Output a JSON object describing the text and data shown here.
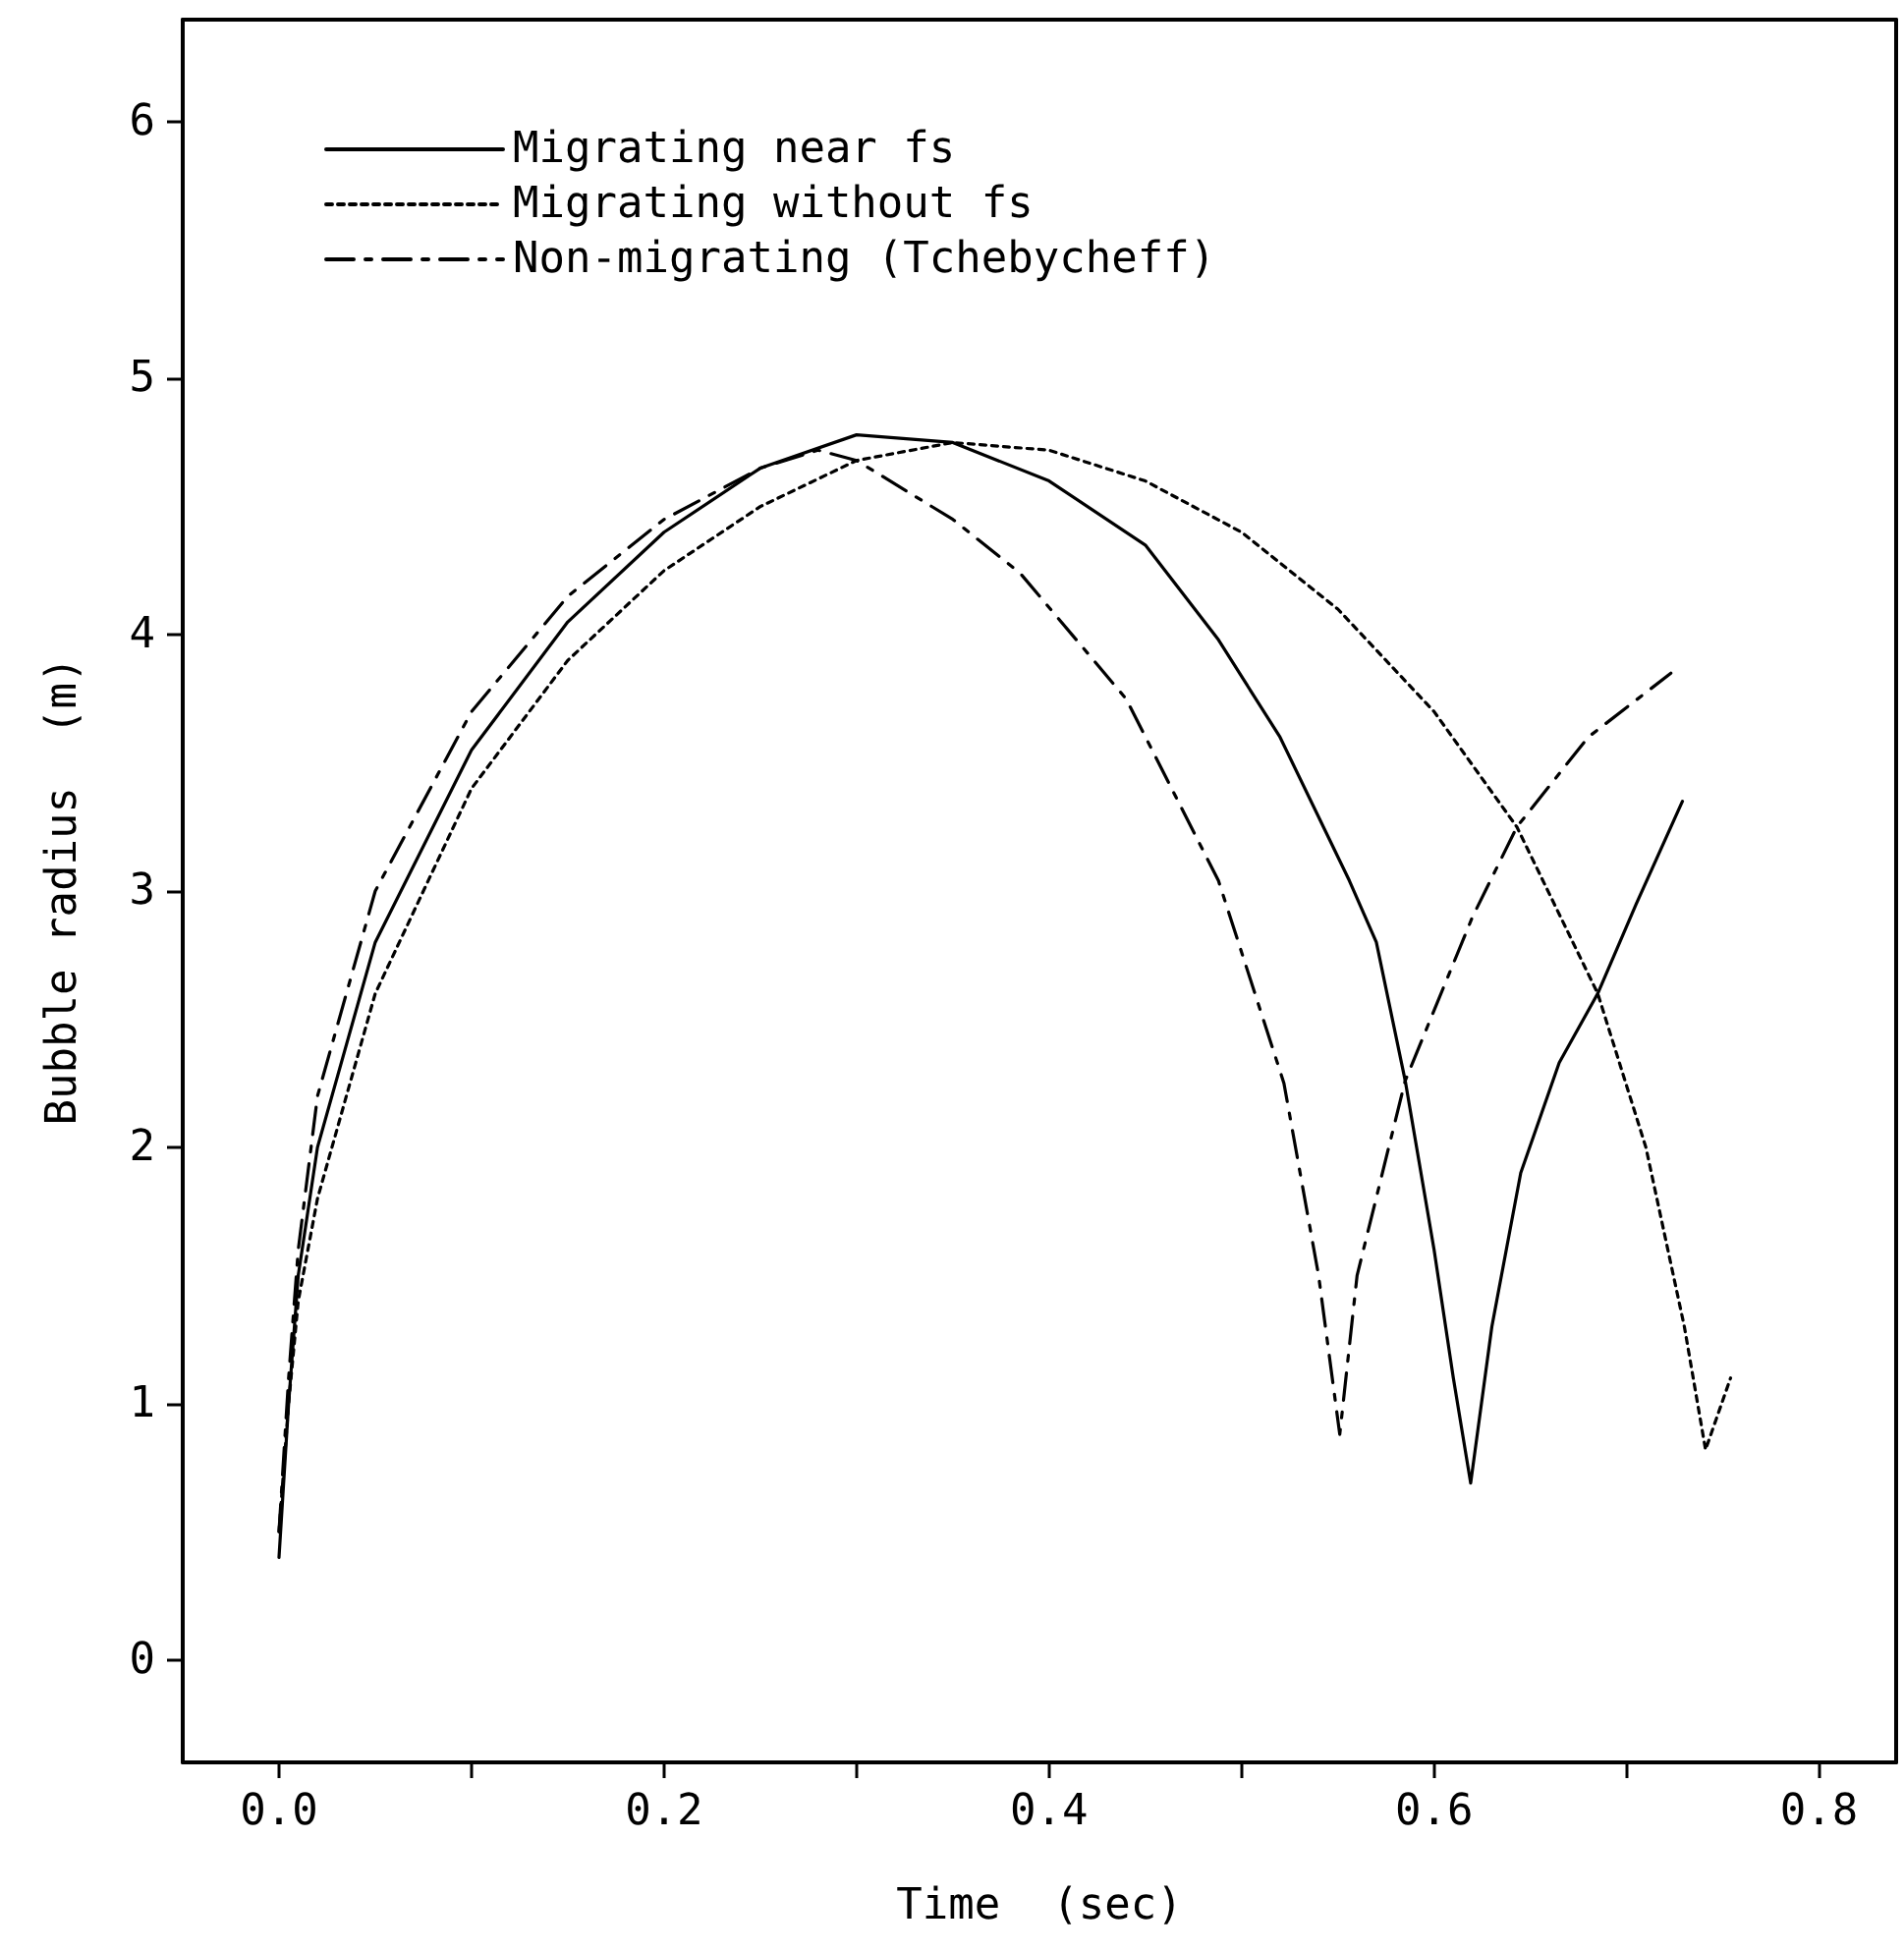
{
  "chart_data": {
    "type": "line",
    "xlabel": "Time  (sec)",
    "ylabel": "Bubble radius  (m)",
    "xlim": [
      -0.05,
      0.84
    ],
    "xticks": [
      {
        "value": 0,
        "label": "0.0"
      },
      {
        "value": 0.1,
        "label": null
      },
      {
        "value": 0.2,
        "label": "0.2"
      },
      {
        "value": 0.3,
        "label": null
      },
      {
        "value": 0.4,
        "label": "0.4"
      },
      {
        "value": 0.5,
        "label": null
      },
      {
        "value": 0.6,
        "label": "0.6"
      },
      {
        "value": 0.7,
        "label": null
      },
      {
        "value": 0.8,
        "label": "0.8"
      }
    ],
    "ylim": [
      -0.4,
      6.4
    ],
    "yticks": [
      0,
      1,
      2,
      3,
      4,
      5,
      6
    ],
    "grid": false,
    "legend": "top left",
    "marker": "none",
    "series": [
      {
        "name": "Migrating near fs",
        "color": "#000000",
        "line_style": "solid",
        "x": [
          0,
          0.005,
          0.01,
          0.02,
          0.05,
          0.1,
          0.15,
          0.2,
          0.25,
          0.3,
          0.35,
          0.4,
          0.45,
          0.488,
          0.52,
          0.556,
          0.57,
          0.585,
          0.6,
          0.61,
          0.619,
          0.63,
          0.645,
          0.665,
          0.685,
          0.705,
          0.729
        ],
        "values": [
          0.4,
          1.0,
          1.5,
          2.0,
          2.8,
          3.55,
          4.05,
          4.4,
          4.65,
          4.78,
          4.75,
          4.6,
          4.35,
          3.98,
          3.6,
          3.04,
          2.8,
          2.26,
          1.6,
          1.1,
          0.69,
          1.3,
          1.9,
          2.33,
          2.6,
          2.95,
          3.35
        ]
      },
      {
        "name": "Migrating without fs",
        "color": "#000000",
        "line_style": "dotted",
        "x": [
          0,
          0.005,
          0.01,
          0.02,
          0.05,
          0.1,
          0.15,
          0.2,
          0.25,
          0.3,
          0.35,
          0.4,
          0.45,
          0.5,
          0.55,
          0.6,
          0.643,
          0.685,
          0.71,
          0.73,
          0.741,
          0.754
        ],
        "values": [
          0.5,
          1.0,
          1.4,
          1.8,
          2.6,
          3.4,
          3.9,
          4.25,
          4.5,
          4.68,
          4.75,
          4.72,
          4.6,
          4.4,
          4.1,
          3.7,
          3.25,
          2.6,
          2.0,
          1.3,
          0.82,
          1.1
        ]
      },
      {
        "name": "Non-migrating (Tchebycheff)",
        "color": "#000000",
        "line_style": "dashed",
        "x": [
          0,
          0.005,
          0.01,
          0.02,
          0.05,
          0.1,
          0.15,
          0.2,
          0.25,
          0.28,
          0.3,
          0.35,
          0.385,
          0.44,
          0.488,
          0.522,
          0.54,
          0.551,
          0.56,
          0.585,
          0.62,
          0.643,
          0.68,
          0.723
        ],
        "values": [
          0.5,
          1.1,
          1.6,
          2.2,
          3.0,
          3.7,
          4.15,
          4.45,
          4.65,
          4.72,
          4.68,
          4.45,
          4.24,
          3.75,
          3.04,
          2.25,
          1.5,
          0.88,
          1.5,
          2.26,
          2.9,
          3.25,
          3.6,
          3.85
        ]
      }
    ]
  }
}
